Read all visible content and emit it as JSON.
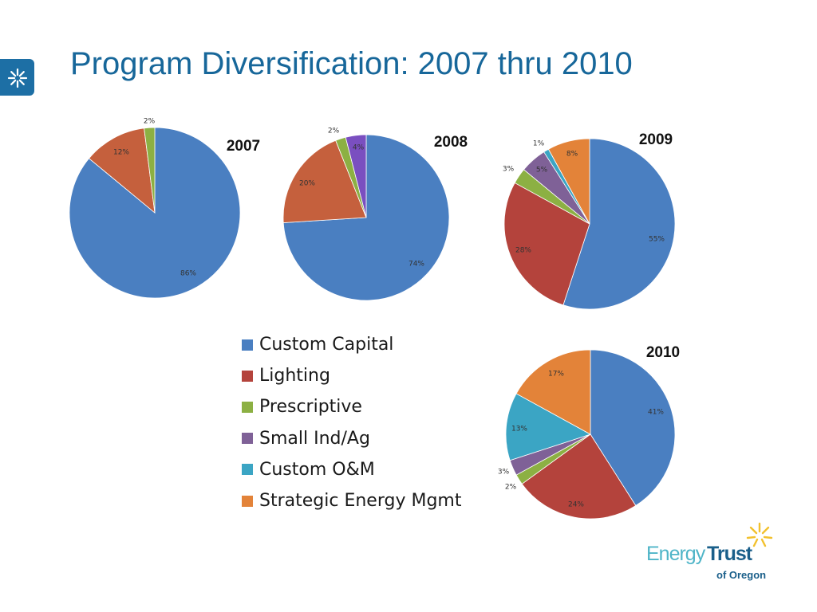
{
  "title": "Program Diversification: 2007 thru 2010",
  "logo": {
    "word1": "Energy",
    "word2": "Trust",
    "tagline": "of Oregon"
  },
  "legend": [
    {
      "label": "Custom Capital",
      "color": "#4a7fc1"
    },
    {
      "label": "Lighting",
      "color": "#b4433c"
    },
    {
      "label": "Prescriptive",
      "color": "#8cb043"
    },
    {
      "label": "Small Ind/Ag",
      "color": "#7f6197"
    },
    {
      "label": "Custom O&M",
      "color": "#3ba5c4"
    },
    {
      "label": "Strategic Energy Mgmt",
      "color": "#e38339"
    }
  ],
  "chart_data": [
    {
      "type": "pie",
      "title": "2007",
      "slices": [
        {
          "category": "Custom Capital",
          "value": 86,
          "label": "86%"
        },
        {
          "category": "Lighting",
          "value": 12,
          "label": "12%",
          "color": "#c5603d"
        },
        {
          "category": "Prescriptive",
          "value": 2,
          "label": "2%"
        }
      ]
    },
    {
      "type": "pie",
      "title": "2008",
      "slices": [
        {
          "category": "Custom Capital",
          "value": 74,
          "label": "74%"
        },
        {
          "category": "Lighting",
          "value": 20,
          "label": "20%",
          "color": "#c5603d"
        },
        {
          "category": "Prescriptive",
          "value": 2,
          "label": "2%"
        },
        {
          "category": "Small Ind/Ag",
          "value": 4,
          "label": "4%",
          "color": "#7a4fc0"
        }
      ]
    },
    {
      "type": "pie",
      "title": "2009",
      "slices": [
        {
          "category": "Custom Capital",
          "value": 55,
          "label": "55%"
        },
        {
          "category": "Lighting",
          "value": 28,
          "label": "28%"
        },
        {
          "category": "Prescriptive",
          "value": 3,
          "label": "3%"
        },
        {
          "category": "Small Ind/Ag",
          "value": 5,
          "label": "5%"
        },
        {
          "category": "Custom O&M",
          "value": 1,
          "label": "1%"
        },
        {
          "category": "Strategic Energy Mgmt",
          "value": 8,
          "label": "8%"
        }
      ]
    },
    {
      "type": "pie",
      "title": "2010",
      "slices": [
        {
          "category": "Custom Capital",
          "value": 41,
          "label": "41%"
        },
        {
          "category": "Lighting",
          "value": 24,
          "label": "24%"
        },
        {
          "category": "Prescriptive",
          "value": 2,
          "label": "2%"
        },
        {
          "category": "Small Ind/Ag",
          "value": 3,
          "label": "3%"
        },
        {
          "category": "Custom O&M",
          "value": 13,
          "label": "13%"
        },
        {
          "category": "Strategic Energy Mgmt",
          "value": 17,
          "label": "17%"
        }
      ]
    }
  ]
}
